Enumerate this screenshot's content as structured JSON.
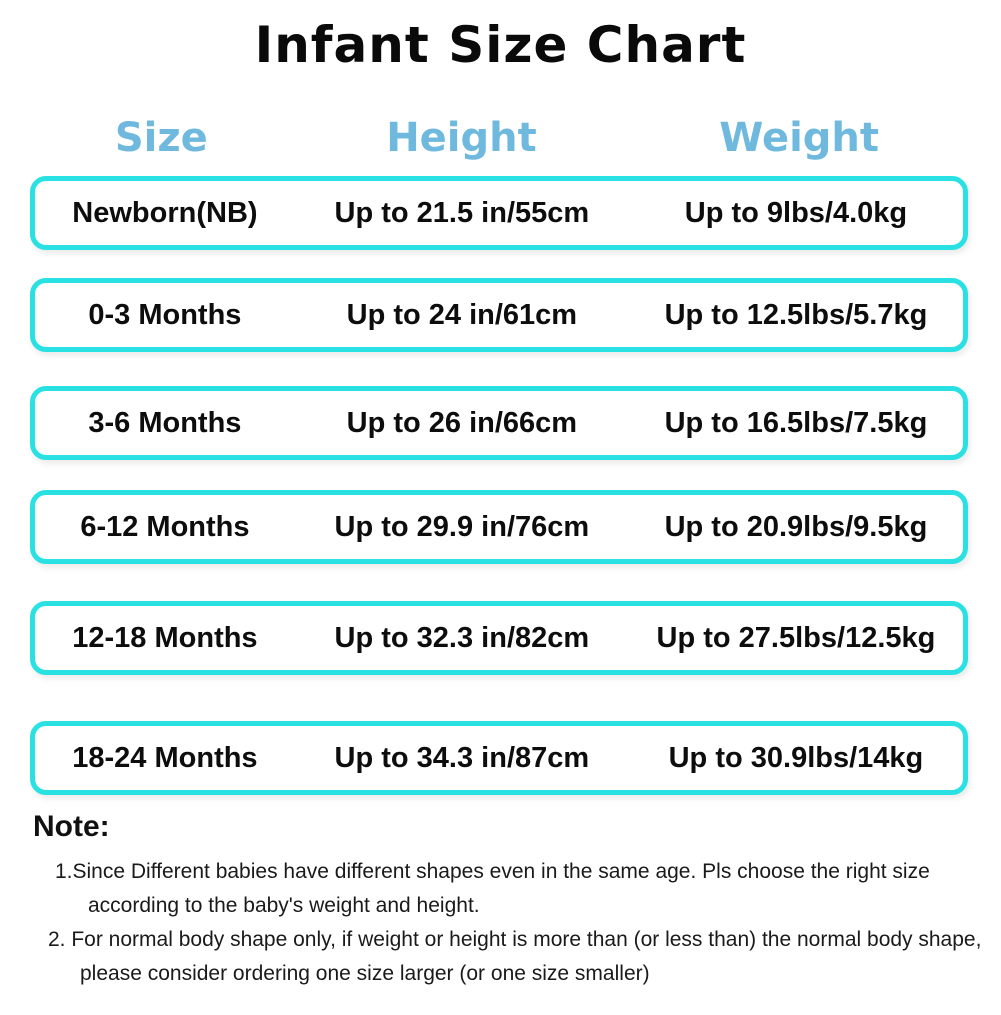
{
  "title": "Infant Size Chart",
  "colors": {
    "header_blue": "#6fb9de",
    "row_border_cyan": "#29e0e3",
    "text_black": "#0d0d0d",
    "background": "#ffffff"
  },
  "table": {
    "headers": [
      "Size",
      "Height",
      "Weight"
    ],
    "rows": [
      {
        "size": "Newborn(NB)",
        "height": "Up to 21.5 in/55cm",
        "weight": "Up to 9lbs/4.0kg"
      },
      {
        "size": "0-3 Months",
        "height": "Up to 24 in/61cm",
        "weight": "Up to 12.5lbs/5.7kg"
      },
      {
        "size": "3-6 Months",
        "height": "Up to 26 in/66cm",
        "weight": "Up to 16.5lbs/7.5kg"
      },
      {
        "size": "6-12 Months",
        "height": "Up to 29.9 in/76cm",
        "weight": "Up to 20.9lbs/9.5kg"
      },
      {
        "size": "12-18 Months",
        "height": "Up to 32.3 in/82cm",
        "weight": "Up to 27.5lbs/12.5kg"
      },
      {
        "size": "18-24 Months",
        "height": "Up to 34.3 in/87cm",
        "weight": "Up to 30.9lbs/14kg"
      }
    ]
  },
  "note": {
    "label": "Note:",
    "items": [
      {
        "lines": [
          "1.Since Different babies have different shapes even in the same age. Pls choose the right size",
          "according to the baby's weight and height."
        ]
      },
      {
        "lines": [
          "2. For normal body shape only, if weight or height is more than (or less than) the normal body shape,",
          "please consider ordering one size larger (or one size smaller)"
        ]
      }
    ]
  },
  "chart_data": {
    "type": "table",
    "title": "Infant Size Chart",
    "columns": [
      "Size",
      "Height",
      "Weight"
    ],
    "rows": [
      [
        "Newborn(NB)",
        "Up to 21.5 in/55cm",
        "Up to 9lbs/4.0kg"
      ],
      [
        "0-3 Months",
        "Up to 24 in/61cm",
        "Up to 12.5lbs/5.7kg"
      ],
      [
        "3-6 Months",
        "Up to 26 in/66cm",
        "Up to 16.5lbs/7.5kg"
      ],
      [
        "6-12 Months",
        "Up to 29.9 in/76cm",
        "Up to 20.9lbs/9.5kg"
      ],
      [
        "12-18 Months",
        "Up to 32.3 in/82cm",
        "Up to 27.5lbs/12.5kg"
      ],
      [
        "18-24 Months",
        "Up to 34.3 in/87cm",
        "Up to 30.9lbs/14kg"
      ]
    ]
  }
}
